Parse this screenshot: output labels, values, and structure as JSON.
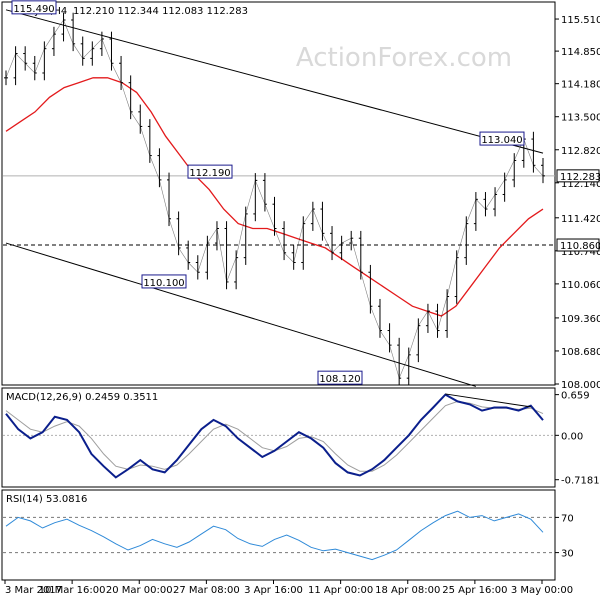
{
  "chart_data": [
    {
      "type": "candlestick",
      "symbol_header": "USDJPY,H4",
      "ohlc_header": "112.210 112.344 112.083 112.283",
      "watermark": "ActionForex.com",
      "ylim": [
        108.0,
        115.84
      ],
      "y_ticks": [
        "115.510",
        "114.850",
        "114.180",
        "113.500",
        "112.820",
        "112.140",
        "111.420",
        "110.740",
        "110.060",
        "109.360",
        "108.680",
        "108.000"
      ],
      "x_ticks": [
        "3 Mar 2017",
        "10 Mar 16:00",
        "20 Mar 00:00",
        "27 Mar 08:00",
        "3 Apr 16:00",
        "11 Apr 00:00",
        "18 Apr 08:00",
        "25 Apr 16:00",
        "3 May 00:00"
      ],
      "current_price_label": "112.283",
      "current_price": 112.283,
      "support_level_label": "110.860",
      "support_level": 110.86,
      "annotations": [
        {
          "text": "115.490",
          "value": 115.49
        },
        {
          "text": "112.190",
          "value": 112.19
        },
        {
          "text": "110.100",
          "value": 110.1
        },
        {
          "text": "108.120",
          "value": 108.12
        },
        {
          "text": "113.040",
          "value": 113.04
        }
      ],
      "price_series": [
        114.3,
        114.8,
        114.6,
        114.4,
        114.9,
        115.2,
        115.49,
        115.0,
        114.7,
        114.9,
        115.1,
        114.6,
        114.2,
        113.6,
        113.3,
        112.7,
        112.2,
        111.4,
        110.8,
        110.5,
        110.3,
        110.9,
        111.2,
        110.1,
        110.6,
        111.5,
        112.19,
        111.7,
        111.2,
        110.7,
        110.5,
        111.3,
        111.6,
        111.1,
        110.7,
        110.9,
        111.0,
        110.3,
        109.6,
        109.1,
        108.8,
        108.12,
        108.6,
        109.2,
        109.5,
        109.1,
        109.8,
        110.6,
        111.3,
        111.8,
        111.6,
        111.9,
        112.2,
        112.6,
        113.04,
        112.5,
        112.283
      ],
      "moving_average_series": [
        113.2,
        113.4,
        113.6,
        113.9,
        114.1,
        114.2,
        114.3,
        114.3,
        114.2,
        114.0,
        113.6,
        113.1,
        112.7,
        112.3,
        112.0,
        111.6,
        111.3,
        111.2,
        111.2,
        111.1,
        111.0,
        110.9,
        110.8,
        110.6,
        110.4,
        110.2,
        110.0,
        109.8,
        109.6,
        109.5,
        109.4,
        109.6,
        110.0,
        110.4,
        110.8,
        111.1,
        111.4,
        111.6
      ],
      "trendlines": [
        {
          "name": "upper-channel",
          "from": {
            "i": 0,
            "v": 115.7
          },
          "to": {
            "i": 56,
            "v": 112.75
          }
        },
        {
          "name": "lower-channel",
          "from": {
            "i": 0,
            "v": 110.9
          },
          "to": {
            "i": 49,
            "v": 107.95
          }
        }
      ],
      "colors": {
        "price": "#000000",
        "moving_average": "#e31a1c",
        "annotation_border": "#1a1a8c",
        "trendline": "#000000"
      }
    },
    {
      "type": "line",
      "header": "MACD(12,26,9) 0.2459 0.3511",
      "ylim": [
        -0.82,
        0.75
      ],
      "y_ticks": [
        "0.659",
        "0.00",
        "-0.7181"
      ],
      "macd_series": [
        0.35,
        0.1,
        -0.05,
        0.05,
        0.3,
        0.25,
        0.05,
        -0.3,
        -0.5,
        -0.68,
        -0.55,
        -0.4,
        -0.55,
        -0.6,
        -0.4,
        -0.15,
        0.1,
        0.25,
        0.15,
        -0.05,
        -0.2,
        -0.35,
        -0.25,
        -0.1,
        0.05,
        -0.05,
        -0.2,
        -0.45,
        -0.6,
        -0.65,
        -0.55,
        -0.4,
        -0.2,
        0.0,
        0.25,
        0.45,
        0.659,
        0.55,
        0.5,
        0.4,
        0.45,
        0.45,
        0.4,
        0.48,
        0.2459
      ],
      "signal_series": [
        0.4,
        0.25,
        0.1,
        0.05,
        0.15,
        0.22,
        0.15,
        -0.05,
        -0.3,
        -0.5,
        -0.55,
        -0.48,
        -0.5,
        -0.55,
        -0.48,
        -0.3,
        -0.1,
        0.1,
        0.18,
        0.1,
        -0.05,
        -0.2,
        -0.25,
        -0.18,
        -0.05,
        -0.02,
        -0.1,
        -0.3,
        -0.48,
        -0.58,
        -0.58,
        -0.48,
        -0.32,
        -0.12,
        0.08,
        0.28,
        0.48,
        0.55,
        0.52,
        0.46,
        0.44,
        0.44,
        0.42,
        0.44,
        0.3511
      ],
      "colors": {
        "macd": "#0b1f8c",
        "signal": "#9e9e9e",
        "divergence": "#000000"
      }
    },
    {
      "type": "line",
      "header": "RSI(14) 53.0816",
      "ylim": [
        0,
        100
      ],
      "levels": [
        70,
        30
      ],
      "y_ticks": [
        "70",
        "30"
      ],
      "rsi_series": [
        60,
        70,
        66,
        58,
        64,
        68,
        61,
        55,
        48,
        40,
        33,
        38,
        45,
        40,
        36,
        42,
        51,
        60,
        56,
        46,
        40,
        37,
        45,
        50,
        44,
        36,
        32,
        34,
        30,
        26,
        22,
        27,
        33,
        44,
        55,
        64,
        72,
        77,
        70,
        72,
        66,
        70,
        74,
        68,
        53.0816
      ],
      "colors": {
        "rsi": "#2f8ad8",
        "level": "#777777"
      }
    }
  ]
}
